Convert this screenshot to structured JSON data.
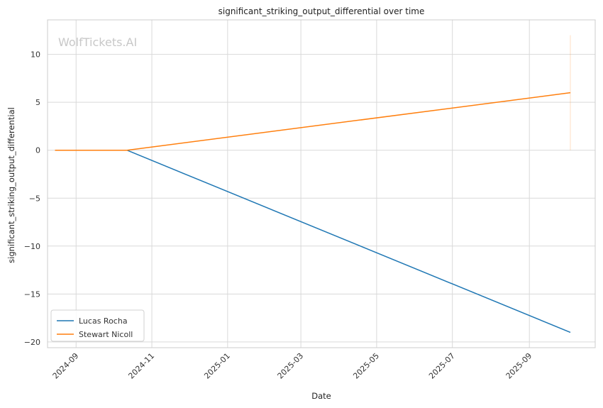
{
  "chart_data": {
    "type": "line",
    "title": "significant_striking_output_differential over time",
    "xlabel": "Date",
    "ylabel": "significant_striking_output_differential",
    "watermark": "WolfTickets.AI",
    "x_axis": {
      "kind": "date",
      "range": [
        "2024-08-09",
        "2025-10-24"
      ],
      "ticks": [
        "2024-09",
        "2024-11",
        "2025-01",
        "2025-03",
        "2025-05",
        "2025-07",
        "2025-09"
      ]
    },
    "y_axis": {
      "range": [
        -20.6,
        13.6
      ],
      "ticks": [
        10,
        5,
        0,
        -5,
        -10,
        -15,
        -20
      ],
      "tick_labels": [
        "10",
        "5",
        "0",
        "−5",
        "−10",
        "−15",
        "−20"
      ]
    },
    "grid": true,
    "legend": {
      "placement": "lower-left"
    },
    "series": [
      {
        "name": "Lucas Rocha",
        "color": "#1f77b4",
        "points": [
          {
            "x": "2024-10-12",
            "y": 0
          },
          {
            "x": "2025-10-04",
            "y": -19
          }
        ]
      },
      {
        "name": "Stewart Nicoll",
        "color": "#ff7f0e",
        "points": [
          {
            "x": "2024-08-15",
            "y": 0
          },
          {
            "x": "2024-10-12",
            "y": 0
          },
          {
            "x": "2025-10-04",
            "y": 6
          }
        ]
      }
    ],
    "annotations": [
      {
        "kind": "vertical-line",
        "x": "2025-10-04",
        "y_range": [
          0,
          12
        ],
        "color": "#ff7f0e",
        "opacity": 0.25
      }
    ]
  }
}
